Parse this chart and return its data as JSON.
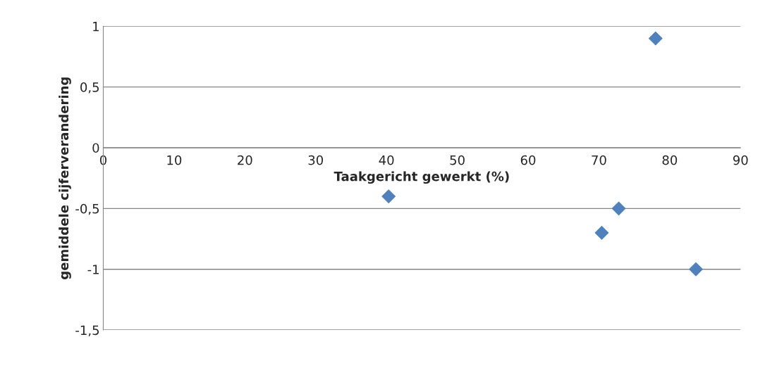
{
  "chart_data": {
    "type": "scatter",
    "xlabel": "Taakgericht gewerkt (%)",
    "ylabel": "gemiddele cijferverandering",
    "x": [
      40.3,
      70.4,
      72.8,
      78.0,
      83.7
    ],
    "values": [
      -0.4,
      -0.7,
      -0.5,
      0.9,
      -1.0
    ],
    "color": "#4f81bd",
    "marker": "diamond",
    "xlim": [
      0,
      90
    ],
    "xticks": [
      0,
      10,
      20,
      30,
      40,
      50,
      60,
      70,
      80,
      90
    ],
    "ylim": [
      -1.5,
      1
    ],
    "yticks": [
      {
        "value": -1.5,
        "label": "-1,5"
      },
      {
        "value": -1,
        "label": "-1"
      },
      {
        "value": -0.5,
        "label": "-0,5"
      },
      0,
      {
        "value": 0.5,
        "label": "0,5"
      },
      1
    ],
    "grid": "y",
    "legend": false
  }
}
